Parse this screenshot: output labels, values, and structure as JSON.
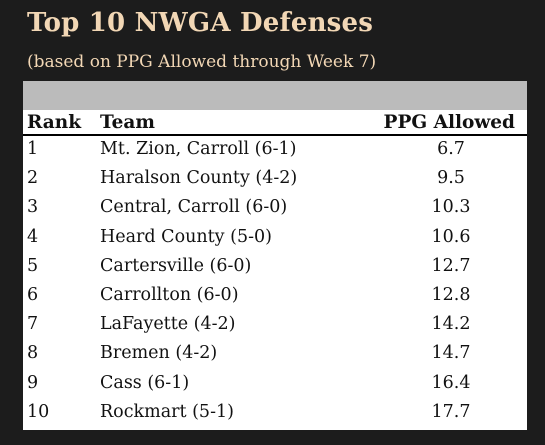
{
  "title": "Top 10 NWGA Defenses",
  "subtitle": "(based on PPG Allowed through Week 7)",
  "table": {
    "headers": {
      "rank": "Rank",
      "team": "Team",
      "ppg": "PPG Allowed"
    },
    "rows": [
      {
        "rank": "1",
        "team": "Mt. Zion, Carroll (6-1)",
        "ppg": "6.7"
      },
      {
        "rank": "2",
        "team": "Haralson County (4-2)",
        "ppg": "9.5"
      },
      {
        "rank": "3",
        "team": "Central, Carroll (6-0)",
        "ppg": "10.3"
      },
      {
        "rank": "4",
        "team": "Heard County (5-0)",
        "ppg": "10.6"
      },
      {
        "rank": "5",
        "team": "Cartersville (6-0)",
        "ppg": "12.7"
      },
      {
        "rank": "6",
        "team": "Carrollton (6-0)",
        "ppg": "12.8"
      },
      {
        "rank": "7",
        "team": "LaFayette (4-2)",
        "ppg": "14.2"
      },
      {
        "rank": "8",
        "team": "Bremen (4-2)",
        "ppg": "14.7"
      },
      {
        "rank": "9",
        "team": "Cass (6-1)",
        "ppg": "16.4"
      },
      {
        "rank": "10",
        "team": "Rockmart (5-1)",
        "ppg": "17.7"
      }
    ]
  },
  "colors": {
    "background": "#1c1c1c",
    "title": "#f2d7b5",
    "header_band": "#bbbbbb",
    "table_bg": "#ffffff"
  }
}
